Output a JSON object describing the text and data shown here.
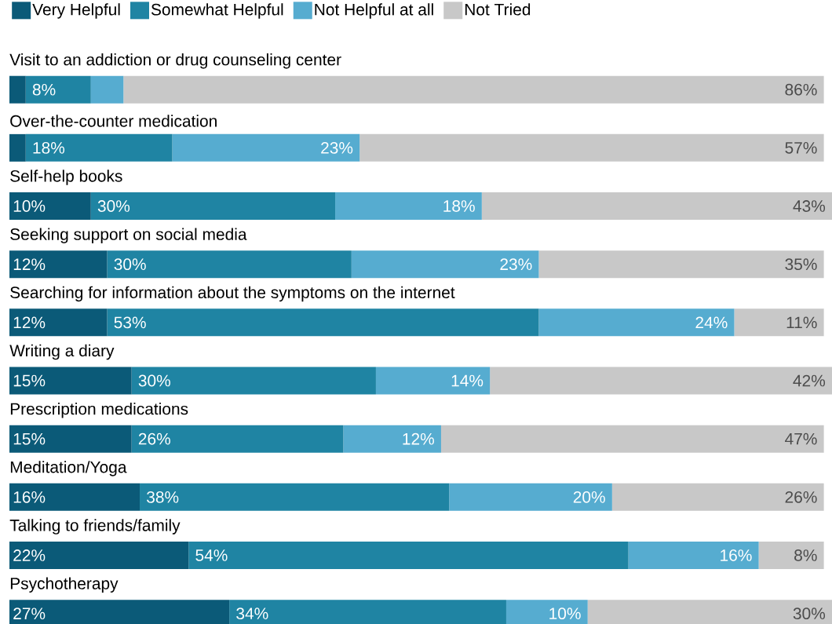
{
  "chart_data": {
    "type": "bar",
    "orientation": "horizontal",
    "stacked": true,
    "legend": "top left",
    "categories": [
      "Visit to an addiction or drug counseling center",
      "Over-the-counter medication",
      "Self-help books",
      "Seeking support on social media",
      "Searching for information about the symptoms on the internet",
      "Writing a diary",
      "Prescription medications",
      "Meditation/Yoga",
      "Talking to friends/family",
      "Psychotherapy"
    ],
    "series": [
      {
        "name": "Very Helpful",
        "color": "#0b5a78",
        "values": [
          2,
          2,
          10,
          12,
          12,
          15,
          15,
          16,
          22,
          27
        ],
        "value_labels": [
          null,
          null,
          "10%",
          "12%",
          "12%",
          "15%",
          "15%",
          "16%",
          "22%",
          "27%"
        ]
      },
      {
        "name": "Somewhat Helpful",
        "color": "#1f84a3",
        "values": [
          8,
          18,
          30,
          30,
          53,
          30,
          26,
          38,
          54,
          34
        ],
        "value_labels": [
          "8%",
          "18%",
          "30%",
          "30%",
          "53%",
          "30%",
          "26%",
          "38%",
          "54%",
          "34%"
        ]
      },
      {
        "name": "Not Helpful at all",
        "color": "#56acd0",
        "values": [
          4,
          23,
          18,
          23,
          24,
          14,
          12,
          20,
          16,
          10
        ],
        "value_labels": [
          null,
          "23%",
          "18%",
          "23%",
          "24%",
          "14%",
          "12%",
          "20%",
          "16%",
          "10%"
        ]
      },
      {
        "name": "Not Tried",
        "color": "#c8c8c8",
        "values": [
          86,
          57,
          43,
          35,
          11,
          42,
          47,
          26,
          8,
          30
        ],
        "value_labels": [
          "86%",
          "57%",
          "43%",
          "35%",
          "11%",
          "42%",
          "47%",
          "26%",
          "8%",
          "30%"
        ]
      }
    ]
  }
}
